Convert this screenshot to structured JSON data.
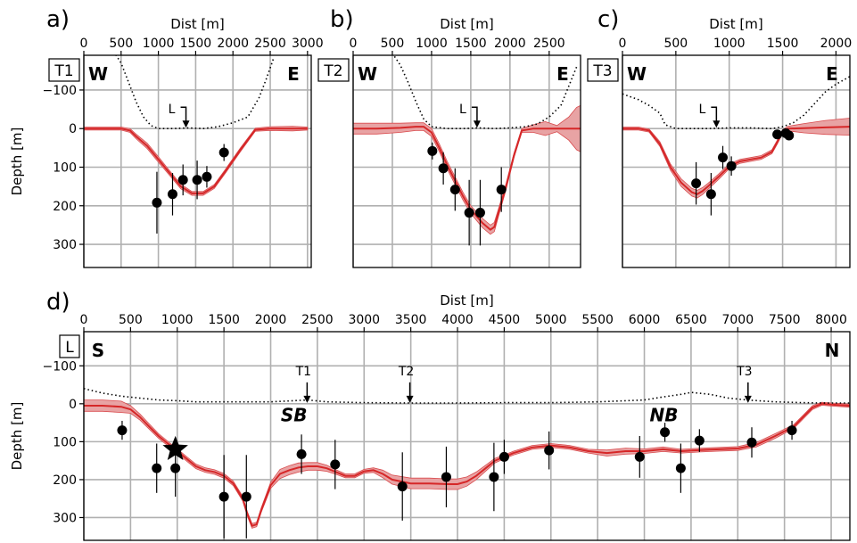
{
  "chart_data": [
    {
      "type": "line",
      "panel_letter": "a)",
      "tag": "T1",
      "left_dir": "W",
      "right_dir": "E",
      "xlabel": "Dist [m]",
      "ylabel": "Depth [m]",
      "xlim": [
        0,
        3050
      ],
      "ylim": [
        360,
        -190
      ],
      "xticks": [
        0,
        500,
        1000,
        1500,
        2000,
        2500,
        3000
      ],
      "yticks": [
        -100,
        0,
        100,
        200,
        300
      ],
      "annotations": [
        {
          "text": "L",
          "x": 1370,
          "y": 0
        }
      ],
      "basement": {
        "x": [
          0,
          200,
          500,
          620,
          700,
          850,
          1000,
          1150,
          1300,
          1450,
          1600,
          1750,
          1900,
          2100,
          2300,
          2500,
          2800,
          3000
        ],
        "y": [
          0,
          0,
          0,
          5,
          20,
          45,
          80,
          115,
          150,
          168,
          168,
          150,
          110,
          55,
          3,
          0,
          0,
          0
        ],
        "unc": [
          4,
          4,
          4,
          5,
          6,
          7,
          7,
          6,
          6,
          5,
          5,
          5,
          5,
          5,
          4,
          5,
          6,
          4
        ]
      },
      "topography": {
        "x": [
          0,
          200,
          400,
          500,
          600,
          700,
          800,
          900,
          1000,
          1200,
          1400,
          1600,
          1800,
          2000,
          2200,
          2350,
          2450,
          2550
        ],
        "y": [
          -230,
          -220,
          -200,
          -170,
          -120,
          -70,
          -30,
          -8,
          0,
          0,
          -2,
          0,
          -5,
          -15,
          -30,
          -80,
          -130,
          -185
        ]
      },
      "points": [
        {
          "x": 980,
          "y": 192,
          "err": 80
        },
        {
          "x": 1190,
          "y": 170,
          "err": 55
        },
        {
          "x": 1330,
          "y": 133,
          "err": 40
        },
        {
          "x": 1520,
          "y": 133,
          "err": 50
        },
        {
          "x": 1650,
          "y": 125,
          "err": 28
        },
        {
          "x": 1880,
          "y": 62,
          "err": 22
        }
      ]
    },
    {
      "type": "line",
      "panel_letter": "b)",
      "tag": "T2",
      "left_dir": "W",
      "right_dir": "E",
      "xlabel": "Dist [m]",
      "ylabel": "",
      "xlim": [
        0,
        2900
      ],
      "ylim": [
        360,
        -190
      ],
      "xticks": [
        0,
        500,
        1000,
        1500,
        2000,
        2500
      ],
      "yticks": [],
      "annotations": [
        {
          "text": "L",
          "x": 1580,
          "y": 0
        }
      ],
      "basement": {
        "x": [
          0,
          300,
          600,
          800,
          900,
          1000,
          1100,
          1200,
          1300,
          1400,
          1500,
          1650,
          1750,
          1800,
          1850,
          1950,
          2050,
          2150,
          2300,
          2450,
          2600,
          2750,
          2850,
          2900
        ],
        "y": [
          0,
          0,
          -2,
          -5,
          -5,
          10,
          50,
          95,
          135,
          175,
          210,
          245,
          262,
          255,
          220,
          150,
          70,
          5,
          0,
          0,
          0,
          0,
          0,
          0
        ],
        "unc": [
          14,
          14,
          12,
          10,
          10,
          10,
          10,
          10,
          10,
          10,
          10,
          12,
          12,
          12,
          10,
          8,
          6,
          5,
          10,
          18,
          8,
          30,
          55,
          60
        ]
      },
      "topography": {
        "x": [
          0,
          400,
          500,
          600,
          700,
          800,
          900,
          1000,
          1200,
          1400,
          1600,
          1800,
          2000,
          2200,
          2350,
          2500,
          2650,
          2750,
          2850
        ],
        "y": [
          -215,
          -205,
          -195,
          -165,
          -120,
          -70,
          -25,
          -5,
          0,
          0,
          -2,
          0,
          -2,
          -5,
          -12,
          -30,
          -60,
          -110,
          -160
        ]
      },
      "points": [
        {
          "x": 1010,
          "y": 58,
          "err": 22
        },
        {
          "x": 1150,
          "y": 103,
          "err": 42
        },
        {
          "x": 1300,
          "y": 158,
          "err": 55
        },
        {
          "x": 1480,
          "y": 218,
          "err": 85
        },
        {
          "x": 1620,
          "y": 218,
          "err": 85
        },
        {
          "x": 1890,
          "y": 158,
          "err": 58
        }
      ]
    },
    {
      "type": "line",
      "panel_letter": "c)",
      "tag": "T3",
      "left_dir": "W",
      "right_dir": "E",
      "xlabel": "Dist [m]",
      "ylabel": "",
      "xlim": [
        0,
        2130
      ],
      "ylim": [
        360,
        -190
      ],
      "xticks": [
        0,
        500,
        1000,
        1500,
        2000
      ],
      "yticks": [],
      "annotations": [
        {
          "text": "L",
          "x": 880,
          "y": 0
        }
      ],
      "basement": {
        "x": [
          0,
          150,
          250,
          350,
          450,
          550,
          650,
          700,
          750,
          800,
          900,
          1000,
          1100,
          1200,
          1300,
          1400,
          1450,
          1500,
          1550,
          1700,
          1900,
          2130
        ],
        "y": [
          0,
          0,
          5,
          40,
          100,
          140,
          165,
          170,
          162,
          150,
          125,
          98,
          85,
          80,
          75,
          60,
          35,
          8,
          0,
          -1,
          -3,
          -5
        ],
        "unc": [
          4,
          4,
          4,
          6,
          8,
          10,
          10,
          10,
          9,
          8,
          7,
          6,
          5,
          5,
          5,
          5,
          5,
          5,
          6,
          12,
          18,
          22
        ]
      },
      "topography": {
        "x": [
          0,
          150,
          250,
          350,
          400,
          500,
          600,
          800,
          1000,
          1200,
          1400,
          1500,
          1600,
          1700,
          1800,
          1900,
          2000,
          2130
        ],
        "y": [
          -90,
          -75,
          -60,
          -40,
          -10,
          0,
          0,
          0,
          -2,
          -2,
          0,
          -5,
          -15,
          -35,
          -65,
          -95,
          -115,
          -135
        ]
      },
      "points": [
        {
          "x": 690,
          "y": 142,
          "err": 55
        },
        {
          "x": 830,
          "y": 170,
          "err": 55
        },
        {
          "x": 940,
          "y": 75,
          "err": 30
        },
        {
          "x": 1020,
          "y": 97,
          "err": 25
        },
        {
          "x": 1450,
          "y": 15,
          "err": 8
        },
        {
          "x": 1530,
          "y": 12,
          "err": 8
        },
        {
          "x": 1560,
          "y": 18,
          "err": 8
        }
      ]
    },
    {
      "type": "line",
      "panel_letter": "d)",
      "tag": "L",
      "left_dir": "S",
      "right_dir": "N",
      "xlabel": "Dist [m]",
      "ylabel": "Depth [m]",
      "xlim": [
        0,
        8200
      ],
      "ylim": [
        360,
        -190
      ],
      "xticks": [
        0,
        500,
        1000,
        1500,
        2000,
        2500,
        3000,
        3500,
        4000,
        4500,
        5000,
        5500,
        6000,
        6500,
        7000,
        7500,
        8000
      ],
      "yticks": [
        -100,
        0,
        100,
        200,
        300
      ],
      "annotations": [
        {
          "text": "T1",
          "x": 2390,
          "y": 0
        },
        {
          "text": "T2",
          "x": 3490,
          "y": 0
        },
        {
          "text": "T3",
          "x": 7110,
          "y": 0
        }
      ],
      "labels": [
        {
          "text": "SB",
          "x": 2250,
          "y": 30
        },
        {
          "text": "NB",
          "x": 6210,
          "y": 30
        }
      ],
      "star": {
        "x": 980,
        "y": 120
      },
      "basement": {
        "x": [
          0,
          200,
          400,
          500,
          600,
          700,
          800,
          900,
          1000,
          1100,
          1200,
          1300,
          1400,
          1500,
          1600,
          1700,
          1750,
          1800,
          1850,
          1900,
          2000,
          2100,
          2200,
          2300,
          2400,
          2500,
          2600,
          2700,
          2800,
          2900,
          3000,
          3100,
          3200,
          3300,
          3500,
          3700,
          3900,
          4000,
          4100,
          4200,
          4300,
          4400,
          4500,
          4600,
          4800,
          5000,
          5200,
          5400,
          5600,
          5800,
          6000,
          6200,
          6400,
          6600,
          6800,
          7000,
          7200,
          7400,
          7600,
          7700,
          7800,
          7900,
          8000,
          8200
        ],
        "y": [
          5,
          5,
          8,
          15,
          35,
          60,
          85,
          105,
          125,
          145,
          165,
          175,
          180,
          190,
          210,
          250,
          290,
          322,
          318,
          280,
          215,
          185,
          175,
          168,
          165,
          165,
          170,
          180,
          190,
          190,
          178,
          175,
          185,
          200,
          210,
          210,
          212,
          212,
          205,
          190,
          170,
          150,
          140,
          130,
          115,
          110,
          115,
          125,
          130,
          125,
          125,
          120,
          125,
          122,
          120,
          118,
          108,
          85,
          60,
          35,
          10,
          0,
          2,
          5
        ],
        "unc": [
          15,
          15,
          15,
          10,
          8,
          7,
          6,
          6,
          6,
          6,
          6,
          6,
          6,
          6,
          6,
          6,
          6,
          6,
          6,
          6,
          8,
          12,
          12,
          12,
          10,
          10,
          8,
          6,
          5,
          5,
          5,
          6,
          10,
          12,
          14,
          14,
          14,
          14,
          12,
          10,
          8,
          6,
          5,
          5,
          5,
          5,
          5,
          5,
          8,
          8,
          6,
          6,
          5,
          5,
          5,
          5,
          6,
          6,
          5,
          5,
          5,
          4,
          4,
          4
        ]
      },
      "topography": {
        "x": [
          0,
          200,
          400,
          600,
          800,
          1000,
          1200,
          1500,
          2000,
          2400,
          2600,
          3000,
          3500,
          4000,
          4500,
          5000,
          5500,
          6000,
          6200,
          6400,
          6500,
          6700,
          6900,
          7100,
          7400,
          7700,
          7900,
          8100,
          8200
        ],
        "y": [
          -40,
          -28,
          -20,
          -15,
          -10,
          -8,
          -5,
          -5,
          -5,
          -10,
          -5,
          -3,
          -2,
          -2,
          -3,
          -3,
          -5,
          -10,
          -18,
          -25,
          -30,
          -25,
          -15,
          -10,
          -5,
          -3,
          -2,
          -2,
          -2
        ]
      },
      "points": [
        {
          "x": 410,
          "y": 70,
          "err": 25
        },
        {
          "x": 780,
          "y": 170,
          "err": 65
        },
        {
          "x": 980,
          "y": 170,
          "err": 75
        },
        {
          "x": 1500,
          "y": 245,
          "err": 110
        },
        {
          "x": 1740,
          "y": 245,
          "err": 110
        },
        {
          "x": 2330,
          "y": 133,
          "err": 52
        },
        {
          "x": 2690,
          "y": 160,
          "err": 65
        },
        {
          "x": 3410,
          "y": 218,
          "err": 90
        },
        {
          "x": 3880,
          "y": 193,
          "err": 80
        },
        {
          "x": 4390,
          "y": 193,
          "err": 90
        },
        {
          "x": 4500,
          "y": 140,
          "err": 45
        },
        {
          "x": 4980,
          "y": 123,
          "err": 50
        },
        {
          "x": 5950,
          "y": 140,
          "err": 55
        },
        {
          "x": 6220,
          "y": 75,
          "err": 25
        },
        {
          "x": 6390,
          "y": 170,
          "err": 65
        },
        {
          "x": 6590,
          "y": 97,
          "err": 30
        },
        {
          "x": 7150,
          "y": 102,
          "err": 40
        },
        {
          "x": 7580,
          "y": 70,
          "err": 25
        }
      ]
    }
  ],
  "colors": {
    "band": "#e8a3a4",
    "band_edge": "#d94a4d",
    "line": "#d62728",
    "point": "#000000",
    "grid": "#b0b0b0",
    "topography": "#000000"
  }
}
